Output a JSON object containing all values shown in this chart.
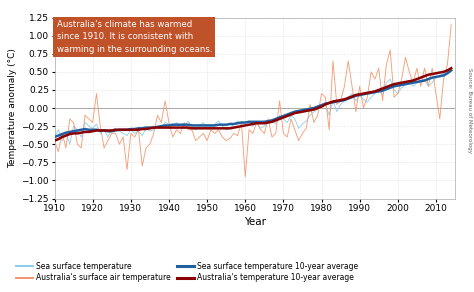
{
  "title": "",
  "ylabel": "Temperature anomaly (°C)",
  "xlabel": "Year",
  "xlim": [
    1910,
    2015
  ],
  "ylim": [
    -1.25,
    1.25
  ],
  "yticks": [
    -1.25,
    -1.0,
    -0.75,
    -0.5,
    -0.25,
    0.0,
    0.25,
    0.5,
    0.75,
    1.0,
    1.25
  ],
  "xticks": [
    1910,
    1920,
    1930,
    1940,
    1950,
    1960,
    1970,
    1980,
    1990,
    2000,
    2010
  ],
  "annotation_text": "Australia's climate has warmed\nsince 1910. It is consistent with\nwarming in the surrounding oceans.",
  "annotation_bg": "#c0522a",
  "annotation_text_color": "white",
  "source_text": "Source: Bureau of Meteorology",
  "sea_surface_color": "#87CEEB",
  "sea_surface_avg_color": "#2060A0",
  "air_temp_color": "#F4956A",
  "air_temp_avg_color": "#8B0000",
  "legend_labels": [
    "Sea surface temperature",
    "Australia's surface air temperature",
    "Sea surface temperature 10-year average",
    "Australia's temperature 10-year average"
  ],
  "sea_surface_years": [
    1910,
    1911,
    1912,
    1913,
    1914,
    1915,
    1916,
    1917,
    1918,
    1919,
    1920,
    1921,
    1922,
    1923,
    1924,
    1925,
    1926,
    1927,
    1928,
    1929,
    1930,
    1931,
    1932,
    1933,
    1934,
    1935,
    1936,
    1937,
    1938,
    1939,
    1940,
    1941,
    1942,
    1943,
    1944,
    1945,
    1946,
    1947,
    1948,
    1949,
    1950,
    1951,
    1952,
    1953,
    1954,
    1955,
    1956,
    1957,
    1958,
    1959,
    1960,
    1961,
    1962,
    1963,
    1964,
    1965,
    1966,
    1967,
    1968,
    1969,
    1970,
    1971,
    1972,
    1973,
    1974,
    1975,
    1976,
    1977,
    1978,
    1979,
    1980,
    1981,
    1982,
    1983,
    1984,
    1985,
    1986,
    1987,
    1988,
    1989,
    1990,
    1991,
    1992,
    1993,
    1994,
    1995,
    1996,
    1997,
    1998,
    1999,
    2000,
    2001,
    2002,
    2003,
    2004,
    2005,
    2006,
    2007,
    2008,
    2009,
    2010,
    2011,
    2012,
    2013,
    2014
  ],
  "sea_surface_values": [
    -0.4,
    -0.3,
    -0.45,
    -0.35,
    -0.5,
    -0.25,
    -0.3,
    -0.4,
    -0.2,
    -0.25,
    -0.28,
    -0.22,
    -0.35,
    -0.3,
    -0.4,
    -0.3,
    -0.28,
    -0.32,
    -0.35,
    -0.38,
    -0.3,
    -0.35,
    -0.32,
    -0.38,
    -0.28,
    -0.32,
    -0.3,
    -0.25,
    -0.28,
    -0.2,
    -0.22,
    -0.25,
    -0.2,
    -0.28,
    -0.25,
    -0.18,
    -0.25,
    -0.3,
    -0.25,
    -0.2,
    -0.28,
    -0.25,
    -0.22,
    -0.18,
    -0.25,
    -0.3,
    -0.28,
    -0.22,
    -0.18,
    -0.22,
    -0.2,
    -0.18,
    -0.25,
    -0.2,
    -0.28,
    -0.25,
    -0.2,
    -0.18,
    -0.22,
    -0.1,
    -0.15,
    -0.2,
    -0.1,
    -0.15,
    -0.28,
    -0.22,
    -0.18,
    -0.1,
    -0.05,
    -0.02,
    0.02,
    0.05,
    -0.1,
    0.1,
    -0.05,
    0.05,
    0.1,
    0.15,
    0.2,
    0.1,
    0.18,
    0.12,
    0.08,
    0.15,
    0.2,
    0.25,
    0.18,
    0.35,
    0.4,
    0.25,
    0.2,
    0.28,
    0.32,
    0.38,
    0.3,
    0.35,
    0.38,
    0.4,
    0.3,
    0.35,
    0.42,
    0.45,
    0.48,
    0.5,
    0.55
  ],
  "sea_surface_avg": [
    -0.4,
    -0.38,
    -0.36,
    -0.34,
    -0.33,
    -0.32,
    -0.31,
    -0.3,
    -0.29,
    -0.3,
    -0.3,
    -0.3,
    -0.31,
    -0.31,
    -0.32,
    -0.32,
    -0.31,
    -0.3,
    -0.3,
    -0.3,
    -0.29,
    -0.29,
    -0.28,
    -0.28,
    -0.27,
    -0.27,
    -0.27,
    -0.26,
    -0.25,
    -0.24,
    -0.24,
    -0.23,
    -0.23,
    -0.23,
    -0.23,
    -0.23,
    -0.24,
    -0.24,
    -0.24,
    -0.24,
    -0.24,
    -0.24,
    -0.24,
    -0.23,
    -0.23,
    -0.23,
    -0.22,
    -0.22,
    -0.21,
    -0.2,
    -0.2,
    -0.19,
    -0.19,
    -0.19,
    -0.19,
    -0.19,
    -0.18,
    -0.17,
    -0.15,
    -0.13,
    -0.11,
    -0.09,
    -0.07,
    -0.05,
    -0.04,
    -0.03,
    -0.02,
    -0.01,
    0.0,
    0.02,
    0.04,
    0.06,
    0.07,
    0.08,
    0.09,
    0.1,
    0.11,
    0.13,
    0.15,
    0.17,
    0.18,
    0.19,
    0.2,
    0.21,
    0.22,
    0.23,
    0.24,
    0.26,
    0.28,
    0.3,
    0.31,
    0.32,
    0.33,
    0.34,
    0.35,
    0.36,
    0.37,
    0.38,
    0.4,
    0.42,
    0.43,
    0.44,
    0.45,
    0.48,
    0.52
  ],
  "air_temp_years": [
    1910,
    1911,
    1912,
    1913,
    1914,
    1915,
    1916,
    1917,
    1918,
    1919,
    1920,
    1921,
    1922,
    1923,
    1924,
    1925,
    1926,
    1927,
    1928,
    1929,
    1930,
    1931,
    1932,
    1933,
    1934,
    1935,
    1936,
    1937,
    1938,
    1939,
    1940,
    1941,
    1942,
    1943,
    1944,
    1945,
    1946,
    1947,
    1948,
    1949,
    1950,
    1951,
    1952,
    1953,
    1954,
    1955,
    1956,
    1957,
    1958,
    1959,
    1960,
    1961,
    1962,
    1963,
    1964,
    1965,
    1966,
    1967,
    1968,
    1969,
    1970,
    1971,
    1972,
    1973,
    1974,
    1975,
    1976,
    1977,
    1978,
    1979,
    1980,
    1981,
    1982,
    1983,
    1984,
    1985,
    1986,
    1987,
    1988,
    1989,
    1990,
    1991,
    1992,
    1993,
    1994,
    1995,
    1996,
    1997,
    1998,
    1999,
    2000,
    2001,
    2002,
    2003,
    2004,
    2005,
    2006,
    2007,
    2008,
    2009,
    2010,
    2011,
    2012,
    2013,
    2014
  ],
  "air_temp_values": [
    -0.45,
    -0.6,
    -0.35,
    -0.55,
    -0.15,
    -0.2,
    -0.5,
    -0.55,
    -0.1,
    -0.15,
    -0.2,
    0.2,
    -0.25,
    -0.55,
    -0.45,
    -0.35,
    -0.35,
    -0.5,
    -0.4,
    -0.85,
    -0.35,
    -0.4,
    -0.3,
    -0.8,
    -0.55,
    -0.5,
    -0.35,
    -0.1,
    -0.2,
    0.1,
    -0.2,
    -0.4,
    -0.3,
    -0.35,
    -0.2,
    -0.3,
    -0.3,
    -0.45,
    -0.4,
    -0.35,
    -0.45,
    -0.3,
    -0.35,
    -0.3,
    -0.4,
    -0.45,
    -0.42,
    -0.35,
    -0.38,
    -0.2,
    -0.95,
    -0.3,
    -0.35,
    -0.2,
    -0.3,
    -0.35,
    -0.15,
    -0.4,
    -0.35,
    0.1,
    -0.35,
    -0.4,
    -0.15,
    -0.3,
    -0.45,
    -0.35,
    -0.28,
    0.05,
    -0.2,
    -0.1,
    0.2,
    0.15,
    -0.3,
    0.65,
    0.05,
    0.1,
    0.3,
    0.65,
    0.3,
    -0.05,
    0.3,
    0.0,
    0.15,
    0.5,
    0.4,
    0.55,
    0.1,
    0.6,
    0.8,
    0.15,
    0.2,
    0.4,
    0.7,
    0.5,
    0.35,
    0.55,
    0.3,
    0.55,
    0.3,
    0.55,
    0.2,
    -0.15,
    0.4,
    0.6,
    1.15
  ],
  "air_temp_avg": [
    -0.45,
    -0.43,
    -0.4,
    -0.38,
    -0.36,
    -0.35,
    -0.35,
    -0.34,
    -0.33,
    -0.33,
    -0.32,
    -0.31,
    -0.31,
    -0.31,
    -0.31,
    -0.31,
    -0.3,
    -0.3,
    -0.3,
    -0.3,
    -0.3,
    -0.3,
    -0.3,
    -0.29,
    -0.29,
    -0.28,
    -0.27,
    -0.27,
    -0.27,
    -0.27,
    -0.27,
    -0.27,
    -0.27,
    -0.27,
    -0.27,
    -0.27,
    -0.28,
    -0.28,
    -0.28,
    -0.28,
    -0.28,
    -0.28,
    -0.28,
    -0.28,
    -0.28,
    -0.28,
    -0.28,
    -0.27,
    -0.26,
    -0.25,
    -0.24,
    -0.23,
    -0.22,
    -0.21,
    -0.21,
    -0.21,
    -0.2,
    -0.19,
    -0.17,
    -0.15,
    -0.13,
    -0.11,
    -0.09,
    -0.07,
    -0.06,
    -0.05,
    -0.04,
    -0.03,
    -0.02,
    0.0,
    0.02,
    0.05,
    0.07,
    0.09,
    0.1,
    0.11,
    0.12,
    0.14,
    0.16,
    0.18,
    0.19,
    0.2,
    0.21,
    0.22,
    0.23,
    0.25,
    0.27,
    0.29,
    0.31,
    0.33,
    0.34,
    0.35,
    0.36,
    0.37,
    0.38,
    0.4,
    0.42,
    0.44,
    0.46,
    0.47,
    0.48,
    0.49,
    0.5,
    0.52,
    0.55
  ]
}
